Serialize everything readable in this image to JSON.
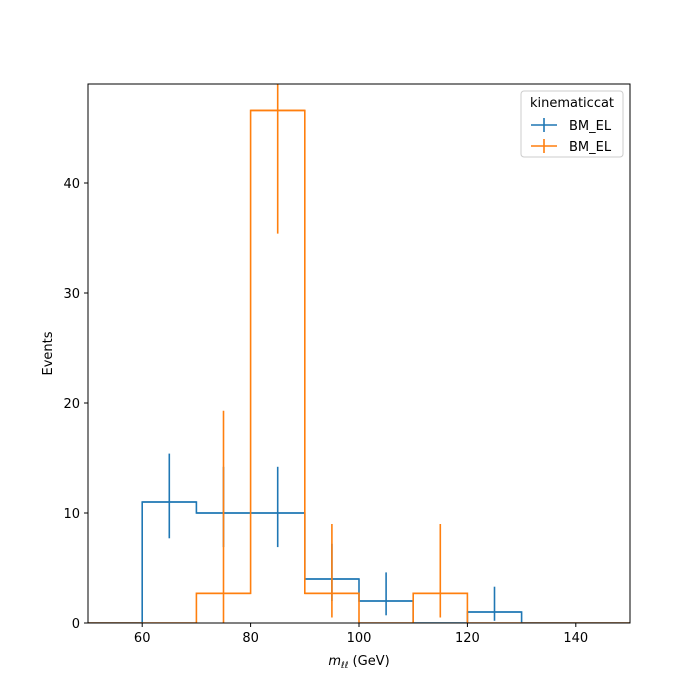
{
  "chart_data": {
    "type": "histogram-step-errorbar",
    "xlabel_main": "m",
    "xlabel_sub": "ℓℓ",
    "xlabel_unit": " (GeV)",
    "ylabel": "Events",
    "xlim": [
      50,
      150
    ],
    "ylim": [
      0,
      49
    ],
    "xticks": [
      60,
      80,
      100,
      120,
      140
    ],
    "yticks": [
      0,
      10,
      20,
      30,
      40
    ],
    "legend": {
      "title": "kinematiccat",
      "placement": "top-right"
    },
    "series": [
      {
        "name": "BM_EL",
        "color": "#1f77b4",
        "bins": [
          {
            "lo": 50,
            "hi": 60,
            "value": 0,
            "err_lo": 0,
            "err_hi": 0
          },
          {
            "lo": 60,
            "hi": 70,
            "value": 11,
            "err_lo": 3.3,
            "err_hi": 4.4
          },
          {
            "lo": 70,
            "hi": 80,
            "value": 10,
            "err_lo": 3.1,
            "err_hi": 4.2
          },
          {
            "lo": 80,
            "hi": 90,
            "value": 10,
            "err_lo": 3.1,
            "err_hi": 4.2
          },
          {
            "lo": 90,
            "hi": 100,
            "value": 4,
            "err_lo": 2.0,
            "err_hi": 3.2
          },
          {
            "lo": 100,
            "hi": 110,
            "value": 2,
            "err_lo": 1.3,
            "err_hi": 2.6
          },
          {
            "lo": 110,
            "hi": 120,
            "value": 0,
            "err_lo": 0,
            "err_hi": 0
          },
          {
            "lo": 120,
            "hi": 130,
            "value": 1,
            "err_lo": 0.8,
            "err_hi": 2.3
          },
          {
            "lo": 130,
            "hi": 150,
            "value": 0,
            "err_lo": 0,
            "err_hi": 0
          }
        ]
      },
      {
        "name": "BM_EL",
        "color": "#ff7f0e",
        "bins": [
          {
            "lo": 50,
            "hi": 70,
            "value": 0,
            "err_lo": 0,
            "err_hi": 0
          },
          {
            "lo": 70,
            "hi": 80,
            "value": 2.7,
            "err_lo": 2.7,
            "err_hi": 16.6
          },
          {
            "lo": 80,
            "hi": 90,
            "value": 46.6,
            "err_lo": 11.2,
            "err_hi": 2.5
          },
          {
            "lo": 90,
            "hi": 100,
            "value": 2.7,
            "err_lo": 2.2,
            "err_hi": 6.3
          },
          {
            "lo": 100,
            "hi": 110,
            "value": 0,
            "err_lo": 0,
            "err_hi": 0
          },
          {
            "lo": 110,
            "hi": 120,
            "value": 2.7,
            "err_lo": 2.2,
            "err_hi": 6.3
          },
          {
            "lo": 120,
            "hi": 150,
            "value": 0,
            "err_lo": 0,
            "err_hi": 0
          }
        ]
      }
    ]
  }
}
